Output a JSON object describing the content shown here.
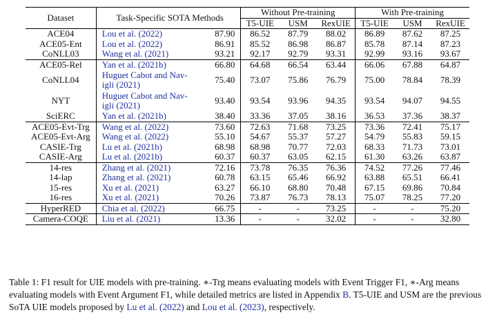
{
  "header": {
    "dataset": "Dataset",
    "methods": "Task-Specific SOTA Methods",
    "group_without": "Without Pre-training",
    "group_with": "With Pre-training",
    "cols": [
      "T5-UIE",
      "USM",
      "RexUIE"
    ]
  },
  "rows": [
    {
      "ds": "ACE04",
      "method": "Lou et al. (2022)",
      "sota": "87.90",
      "w": [
        "86.52",
        "87.79",
        "88.02"
      ],
      "p": [
        "86.89",
        "87.62",
        "87.25"
      ]
    },
    {
      "ds": "ACE05-Ent",
      "method": "Lou et al. (2022)",
      "sota": "86.91",
      "w": [
        "85.52",
        "86.98",
        "86.87"
      ],
      "p": [
        "85.78",
        "87.14",
        "87.23"
      ]
    },
    {
      "ds": "CoNLL03",
      "method": "Wang et al. (2021)",
      "sota": "93.21",
      "w": [
        "92.17",
        "92.79",
        "93.31"
      ],
      "p": [
        "92.99",
        "93.16",
        "93.67"
      ]
    },
    {
      "ds": "ACE05-Rel",
      "method": "Yan et al. (2021b)",
      "sota": "66.80",
      "w": [
        "64.68",
        "66.54",
        "63.44"
      ],
      "p": [
        "66.06",
        "67.88",
        "64.87"
      ]
    },
    {
      "ds": "CoNLL04",
      "method": "Huguet Cabot and Navigli (2021)",
      "method_l1": "Huguet Cabot and Nav-",
      "method_l2": "igli (2021)",
      "sota": "75.40",
      "w": [
        "73.07",
        "75.86",
        "76.79"
      ],
      "p": [
        "75.00",
        "78.84",
        "78.39"
      ]
    },
    {
      "ds": "NYT",
      "method": "Huguet Cabot and Navigli (2021)",
      "method_l1": "Huguet Cabot and Nav-",
      "method_l2": "igli (2021)",
      "sota": "93.40",
      "w": [
        "93.54",
        "93.96",
        "94.35"
      ],
      "p": [
        "93.54",
        "94.07",
        "94.55"
      ]
    },
    {
      "ds": "SciERC",
      "method": "Yan et al. (2021b)",
      "sota": "38.40",
      "w": [
        "33.36",
        "37.05",
        "38.16"
      ],
      "p": [
        "36.53",
        "37.36",
        "38.37"
      ]
    },
    {
      "ds": "ACE05-Evt-Trg",
      "method": "Wang et al. (2022)",
      "sota": "73.60",
      "w": [
        "72.63",
        "71.68",
        "73.25"
      ],
      "p": [
        "73.36",
        "72.41",
        "75.17"
      ]
    },
    {
      "ds": "ACE05-Evt-Arg",
      "method": "Wang et al. (2022)",
      "sota": "55.10",
      "w": [
        "54.67",
        "55.37",
        "57.27"
      ],
      "p": [
        "54.79",
        "55.83",
        "59.15"
      ]
    },
    {
      "ds": "CASIE-Trg",
      "method": "Lu et al. (2021b)",
      "sota": "68.98",
      "w": [
        "68.98",
        "70.77",
        "72.03"
      ],
      "p": [
        "68.33",
        "71.73",
        "73.01"
      ]
    },
    {
      "ds": "CASIE-Arg",
      "method": "Lu et al. (2021b)",
      "sota": "60.37",
      "w": [
        "60.37",
        "63.05",
        "62.15"
      ],
      "p": [
        "61.30",
        "63.26",
        "63.87"
      ]
    },
    {
      "ds": "14-res",
      "method": "Zhang et al. (2021)",
      "sota": "72.16",
      "w": [
        "73.78",
        "76.35",
        "76.36"
      ],
      "p": [
        "74.52",
        "77.26",
        "77.46"
      ]
    },
    {
      "ds": "14-lap",
      "method": "Zhang et al. (2021)",
      "sota": "60.78",
      "w": [
        "63.15",
        "65.46",
        "66.92"
      ],
      "p": [
        "63.88",
        "65.51",
        "66.41"
      ]
    },
    {
      "ds": "15-res",
      "method": "Xu et al. (2021)",
      "sota": "63.27",
      "w": [
        "66.10",
        "68.80",
        "70.48"
      ],
      "p": [
        "67.15",
        "69.86",
        "70.84"
      ]
    },
    {
      "ds": "16-res",
      "method": "Xu et al. (2021)",
      "sota": "70.26",
      "w": [
        "73.87",
        "76.73",
        "78.13"
      ],
      "p": [
        "75.07",
        "78.25",
        "77.20"
      ]
    },
    {
      "ds": "HyperRED",
      "method": "Chia et al. (2022)",
      "sota": "66.75",
      "w": [
        "-",
        "-",
        "73.25"
      ],
      "p": [
        "-",
        "-",
        "75.20"
      ]
    },
    {
      "ds": "Camera-COQE",
      "method": "Liu et al. (2021)",
      "sota": "13.36",
      "w": [
        "-",
        "-",
        "32.02"
      ],
      "p": [
        "-",
        "-",
        "32.80"
      ]
    }
  ],
  "caption": {
    "p1": "Table 1: F1 result for UIE models with pre-training. ∗-Trg means evaluating models with Event Trigger F1, ∗-Arg means evaluating models with Event Argument F1, while detailed metrics are listed in Appendix ",
    "appendix": "B",
    "p2": ". T5-UIE and USM are the previous SoTA UIE models proposed by ",
    "cite1": "Lu et al. (2022)",
    "p3": " and ",
    "cite2": "Lou et al. (2023)",
    "p4": ", respectively."
  }
}
